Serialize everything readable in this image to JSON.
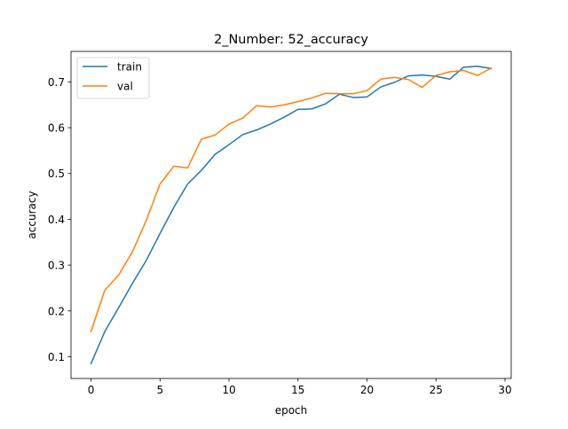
{
  "chart_data": {
    "type": "line",
    "title": "2_Number: 52_accuracy",
    "xlabel": "epoch",
    "ylabel": "accuracy",
    "xlim": [
      -1.45,
      30.45
    ],
    "ylim": [
      0.0525,
      0.7665
    ],
    "xticks": [
      0,
      5,
      10,
      15,
      20,
      25,
      30
    ],
    "yticks": [
      0.1,
      0.2,
      0.3,
      0.4,
      0.5,
      0.6,
      0.7
    ],
    "xtick_labels": [
      "0",
      "5",
      "10",
      "15",
      "20",
      "25",
      "30"
    ],
    "ytick_labels": [
      "0.1",
      "0.2",
      "0.3",
      "0.4",
      "0.5",
      "0.6",
      "0.7"
    ],
    "legend_position": "upper-left",
    "grid": false,
    "x": [
      0,
      1,
      2,
      3,
      4,
      5,
      6,
      7,
      8,
      9,
      10,
      11,
      12,
      13,
      14,
      15,
      16,
      17,
      18,
      19,
      20,
      21,
      22,
      23,
      24,
      25,
      26,
      27,
      28,
      29
    ],
    "series": [
      {
        "name": "train",
        "color": "#1f77b4",
        "values": [
          0.085,
          0.155,
          0.207,
          0.26,
          0.31,
          0.369,
          0.426,
          0.477,
          0.507,
          0.542,
          0.563,
          0.585,
          0.595,
          0.608,
          0.623,
          0.64,
          0.641,
          0.652,
          0.673,
          0.666,
          0.667,
          0.689,
          0.699,
          0.713,
          0.715,
          0.712,
          0.706,
          0.732,
          0.734,
          0.729
        ]
      },
      {
        "name": "val",
        "color": "#ff7f0e",
        "values": [
          0.155,
          0.245,
          0.278,
          0.329,
          0.397,
          0.477,
          0.516,
          0.512,
          0.575,
          0.584,
          0.608,
          0.621,
          0.648,
          0.645,
          0.65,
          0.657,
          0.665,
          0.675,
          0.674,
          0.674,
          0.681,
          0.706,
          0.71,
          0.705,
          0.688,
          0.714,
          0.722,
          0.725,
          0.714,
          0.73
        ]
      }
    ]
  }
}
